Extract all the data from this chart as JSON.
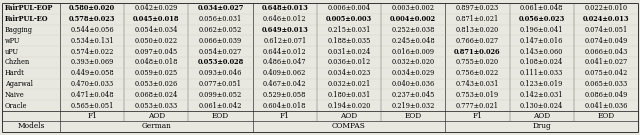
{
  "models": [
    "Oracle",
    "Naive",
    "Agarwal",
    "Hardt",
    "Chzhen",
    "uPU",
    "wPU",
    "Bagging",
    "FairPUL-EO",
    "FairPUL-EOP"
  ],
  "headers_top": [
    "German",
    "COMPAS",
    "Drug"
  ],
  "headers_sub": [
    "F1",
    "AOD",
    "EOD",
    "F1",
    "AOD",
    "EOD",
    "F1",
    "AOD",
    "EOD"
  ],
  "data": [
    [
      "0.565±0.051",
      "0.053±0.033",
      "0.061±0.042",
      "0.604±0.018",
      "0.194±0.020",
      "0.219±0.032",
      "0.777±0.021",
      "0.130±0.024",
      "0.041±0.036"
    ],
    [
      "0.471±0.048",
      "0.068±0.024",
      "0.099±0.052",
      "0.529±0.058",
      "0.180±0.031",
      "0.237±0.045",
      "0.753±0.019",
      "0.142±0.031",
      "0.086±0.049"
    ],
    [
      "0.470±0.033",
      "0.053±0.026",
      "0.077±0.051",
      "0.467±0.042",
      "0.032±0.021",
      "0.040±0.036",
      "0.743±0.031",
      "0.123±0.019",
      "0.065±0.033"
    ],
    [
      "0.449±0.058",
      "0.059±0.025",
      "0.093±0.046",
      "0.409±0.062",
      "0.034±0.023",
      "0.034±0.029",
      "0.756±0.022",
      "0.111±0.033",
      "0.075±0.042"
    ],
    [
      "0.393±0.069",
      "0.048±0.018",
      "0.053±0.028",
      "0.486±0.047",
      "0.036±0.012",
      "0.032±0.020",
      "0.755±0.020",
      "0.108±0.024",
      "0.041±0.027"
    ],
    [
      "0.574±0.022",
      "0.097±0.045",
      "0.054±0.027",
      "0.644±0.012",
      "0.031±0.024",
      "0.016±0.009",
      "0.871±0.026",
      "0.143±0.060",
      "0.066±0.043"
    ],
    [
      "0.534±0.131",
      "0.050±0.022",
      "0.066±0.039",
      "0.612±0.071",
      "0.188±0.035",
      "0.245±0.048",
      "0.766±0.027",
      "0.147±0.016",
      "0.074±0.049"
    ],
    [
      "0.544±0.056",
      "0.054±0.034",
      "0.062±0.052",
      "0.649±0.013",
      "0.215±0.031",
      "0.252±0.038",
      "0.813±0.020",
      "0.196±0.041",
      "0.074±0.051"
    ],
    [
      "0.578±0.023",
      "0.045±0.018",
      "0.056±0.031",
      "0.646±0.012",
      "0.005±0.003",
      "0.004±0.002",
      "0.871±0.021",
      "0.056±0.023",
      "0.024±0.013"
    ],
    [
      "0.580±0.020",
      "0.042±0.029",
      "0.034±0.027",
      "0.648±0.013",
      "0.006±0.004",
      "0.003±0.002",
      "0.897±0.023",
      "0.061±0.048",
      "0.022±0.010"
    ]
  ],
  "bold": [
    [
      false,
      false,
      false,
      false,
      false,
      false,
      false,
      false,
      false
    ],
    [
      false,
      false,
      false,
      false,
      false,
      false,
      false,
      false,
      false
    ],
    [
      false,
      false,
      false,
      false,
      false,
      false,
      false,
      false,
      false
    ],
    [
      false,
      false,
      false,
      false,
      false,
      false,
      false,
      false,
      false
    ],
    [
      false,
      false,
      true,
      false,
      false,
      false,
      false,
      false,
      false
    ],
    [
      false,
      false,
      false,
      false,
      false,
      false,
      true,
      false,
      false
    ],
    [
      false,
      false,
      false,
      false,
      false,
      false,
      false,
      false,
      false
    ],
    [
      false,
      false,
      false,
      true,
      false,
      false,
      false,
      false,
      false
    ],
    [
      true,
      true,
      false,
      false,
      true,
      true,
      false,
      true,
      true
    ],
    [
      true,
      false,
      true,
      true,
      false,
      false,
      false,
      false,
      false
    ]
  ],
  "model_bold": [
    false,
    false,
    false,
    false,
    false,
    false,
    false,
    false,
    true,
    true
  ],
  "bg_color": "#e8e8e0",
  "line_color": "#555555",
  "strong_line_color": "#333333",
  "font_size": 4.8,
  "header_font_size": 5.3,
  "figsize": [
    6.4,
    1.35
  ],
  "dpi": 100
}
